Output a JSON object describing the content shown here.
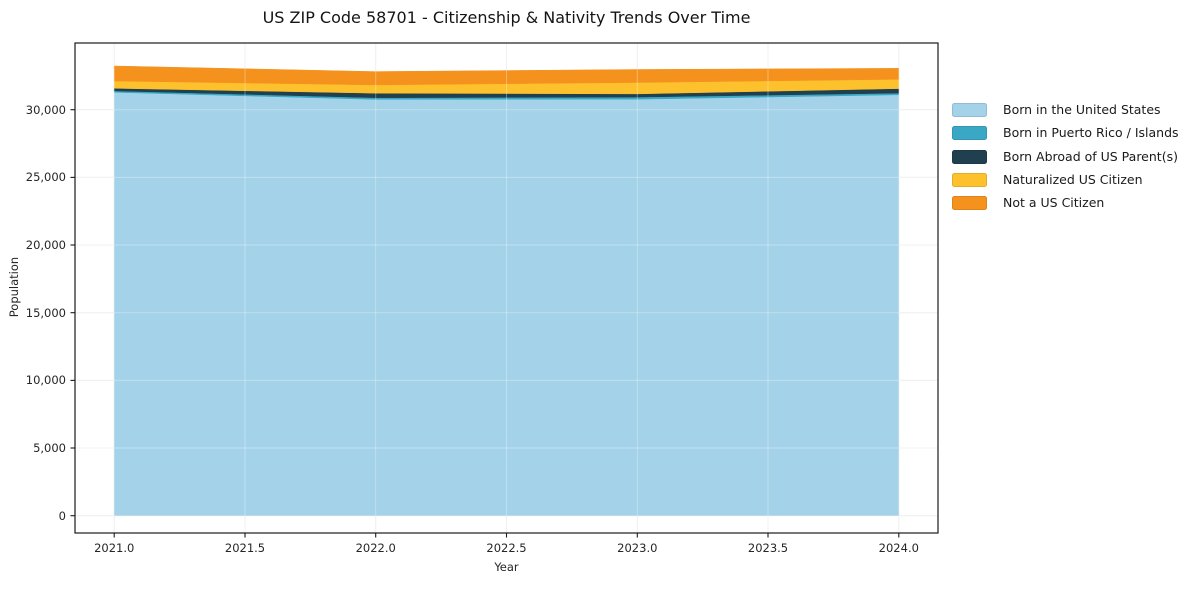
{
  "chart_data": {
    "type": "area",
    "stacked": true,
    "title": "US ZIP Code 58701 - Citizenship & Nativity Trends Over Time",
    "xlabel": "Year",
    "ylabel": "Population",
    "x": [
      2021,
      2022,
      2023,
      2024
    ],
    "series": [
      {
        "name": "Born in the United States",
        "color": "#a3d2e9",
        "values": [
          31290,
          30760,
          30780,
          31100
        ]
      },
      {
        "name": "Born in Puerto Rico / Islands",
        "color": "#3aa8c4",
        "values": [
          100,
          125,
          150,
          130
        ]
      },
      {
        "name": "Born Abroad of US Parent(s)",
        "color": "#20404f",
        "values": [
          190,
          335,
          240,
          330
        ]
      },
      {
        "name": "Naturalized US Citizen",
        "color": "#fcc12d",
        "values": [
          540,
          610,
          840,
          690
        ]
      },
      {
        "name": "Not a US Citizen",
        "color": "#f5921e",
        "values": [
          1110,
          985,
          960,
          810
        ]
      }
    ],
    "xlim": [
      2020.85,
      2024.15
    ],
    "ylim": [
      -1280,
      34930
    ],
    "x_ticks": [
      2021.0,
      2021.5,
      2022.0,
      2022.5,
      2023.0,
      2023.5,
      2024.0
    ],
    "x_tick_labels": [
      "2021.0",
      "2021.5",
      "2022.0",
      "2022.5",
      "2023.0",
      "2023.5",
      "2024.0"
    ],
    "y_ticks": [
      0,
      5000,
      10000,
      15000,
      20000,
      25000,
      30000
    ],
    "y_tick_labels": [
      "0",
      "5,000",
      "10,000",
      "15,000",
      "20,000",
      "25,000",
      "30,000"
    ],
    "grid": true,
    "legend_position": "right-outside"
  },
  "colors": {
    "background": "#ffffff",
    "grid": "#e9e9e9",
    "grid_overlay": "rgba(255,255,255,0.32)",
    "frame": "#1a1a1a",
    "tick": "#1a1a1a",
    "text": "#262626"
  }
}
